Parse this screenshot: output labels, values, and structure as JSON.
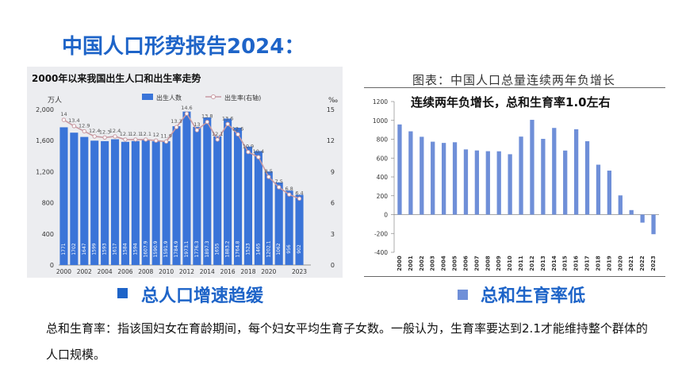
{
  "page": {
    "title": "中国人口形势报告2024：",
    "left_chart_title": "2000年以来我国出生人口和出生率走势",
    "right_caption": "图表：中国人口总量连续两年负增长",
    "right_subtitle": "连续两年负增长，总和生育率1.0左右",
    "bullet1": "总人口增速趋缓",
    "bullet2": "总和生育率低",
    "definition": "总和生育率：指该国妇女在育龄期间，每个妇女平均生育子女数。一般认为，生育率要达到2.1才能维持整个群体的人口规模。",
    "colors": {
      "title_blue": "#1e64c8",
      "bar_blue": "#3a74d8",
      "line_pink": "#c89aa2",
      "right_bar": "#6f8fd8"
    }
  },
  "chart_data": [
    {
      "type": "bar",
      "title": "2000年以来我国出生人口和出生率走势",
      "ylabel": "万人",
      "y2label": "‰",
      "ylim": [
        0,
        2000
      ],
      "y2lim": [
        0,
        15
      ],
      "yticks": [
        "0",
        "400",
        "800",
        "1,200",
        "1,600",
        "2,000"
      ],
      "y2ticks": [
        "0",
        "3",
        "6",
        "9",
        "12",
        "15"
      ],
      "x_tick_labels": [
        "2000",
        "2002",
        "2004",
        "2006",
        "2008",
        "2010",
        "2012",
        "2014",
        "2016",
        "2018",
        "2020",
        "2023"
      ],
      "legend": [
        "出生人数",
        "出生率(右轴)"
      ],
      "legend_position": "top",
      "categories": [
        "2000",
        "2001",
        "2002",
        "2003",
        "2004",
        "2005",
        "2006",
        "2007",
        "2008",
        "2009",
        "2010",
        "2011",
        "2012",
        "2013",
        "2014",
        "2015",
        "2016",
        "2017",
        "2018",
        "2019",
        "2020",
        "2021",
        "2022",
        "2023"
      ],
      "series": [
        {
          "name": "出生人数",
          "kind": "bar",
          "axis": "left",
          "values": [
            1771,
            1702,
            1647,
            1599,
            1593,
            1617,
            1584,
            1594,
            1608,
            1591,
            1592,
            1785,
            1973,
            1776,
            1897,
            1655,
            1883,
            1765,
            1523,
            1465,
            1202,
            1062,
            956,
            902
          ],
          "labels": [
            "1771",
            "1702",
            "1647",
            "1599",
            "1593",
            "1617",
            "1584",
            "1594",
            "1607.9",
            "1590.9",
            "1591.9",
            "1784.9",
            "1973.1",
            "1776.3",
            "1897.3",
            "1655",
            "1883.2",
            "1764.8",
            "1523",
            "1465",
            "1202.1",
            "1062",
            "956",
            "902"
          ]
        },
        {
          "name": "出生率(右轴)",
          "kind": "line",
          "axis": "right",
          "values": [
            14,
            13.4,
            12.9,
            12.4,
            12.3,
            12.4,
            12.1,
            12.1,
            12.1,
            12,
            11.9,
            13.3,
            14.6,
            13,
            13.8,
            12.1,
            13.6,
            12.6,
            10.9,
            10.4,
            8.5,
            7.5,
            6.8,
            6.4
          ],
          "labels": [
            "14",
            "13.4",
            "12.9",
            "12.4",
            "12.3",
            "12.4",
            "12.1",
            "12.1",
            "12.1",
            "12",
            "11.9",
            "13.3",
            "14.6",
            "13",
            "13.8",
            "12.1",
            "13.6",
            "12.6",
            "10.9",
            "10.4",
            "8.5",
            "7.5",
            "6.8",
            "6.4"
          ]
        }
      ],
      "grid": false
    },
    {
      "type": "bar",
      "title": "连续两年负增长，总和生育率1.0左右",
      "ylim": [
        -400,
        1200
      ],
      "yticks": [
        "-400",
        "-200",
        "0",
        "200",
        "400",
        "600",
        "800",
        "1000",
        "1200"
      ],
      "categories": [
        "2000",
        "2001",
        "2002",
        "2003",
        "2004",
        "2005",
        "2006",
        "2007",
        "2008",
        "2009",
        "2010",
        "2011",
        "2012",
        "2013",
        "2014",
        "2015",
        "2016",
        "2017",
        "2018",
        "2019",
        "2020",
        "2021",
        "2022",
        "2023"
      ],
      "series": [
        {
          "values": [
            957,
            884,
            826,
            774,
            761,
            768,
            692,
            681,
            673,
            672,
            641,
            828,
            1006,
            804,
            920,
            680,
            906,
            779,
            530,
            467,
            204,
            48,
            -85,
            -208
          ]
        }
      ],
      "grid": false
    }
  ]
}
